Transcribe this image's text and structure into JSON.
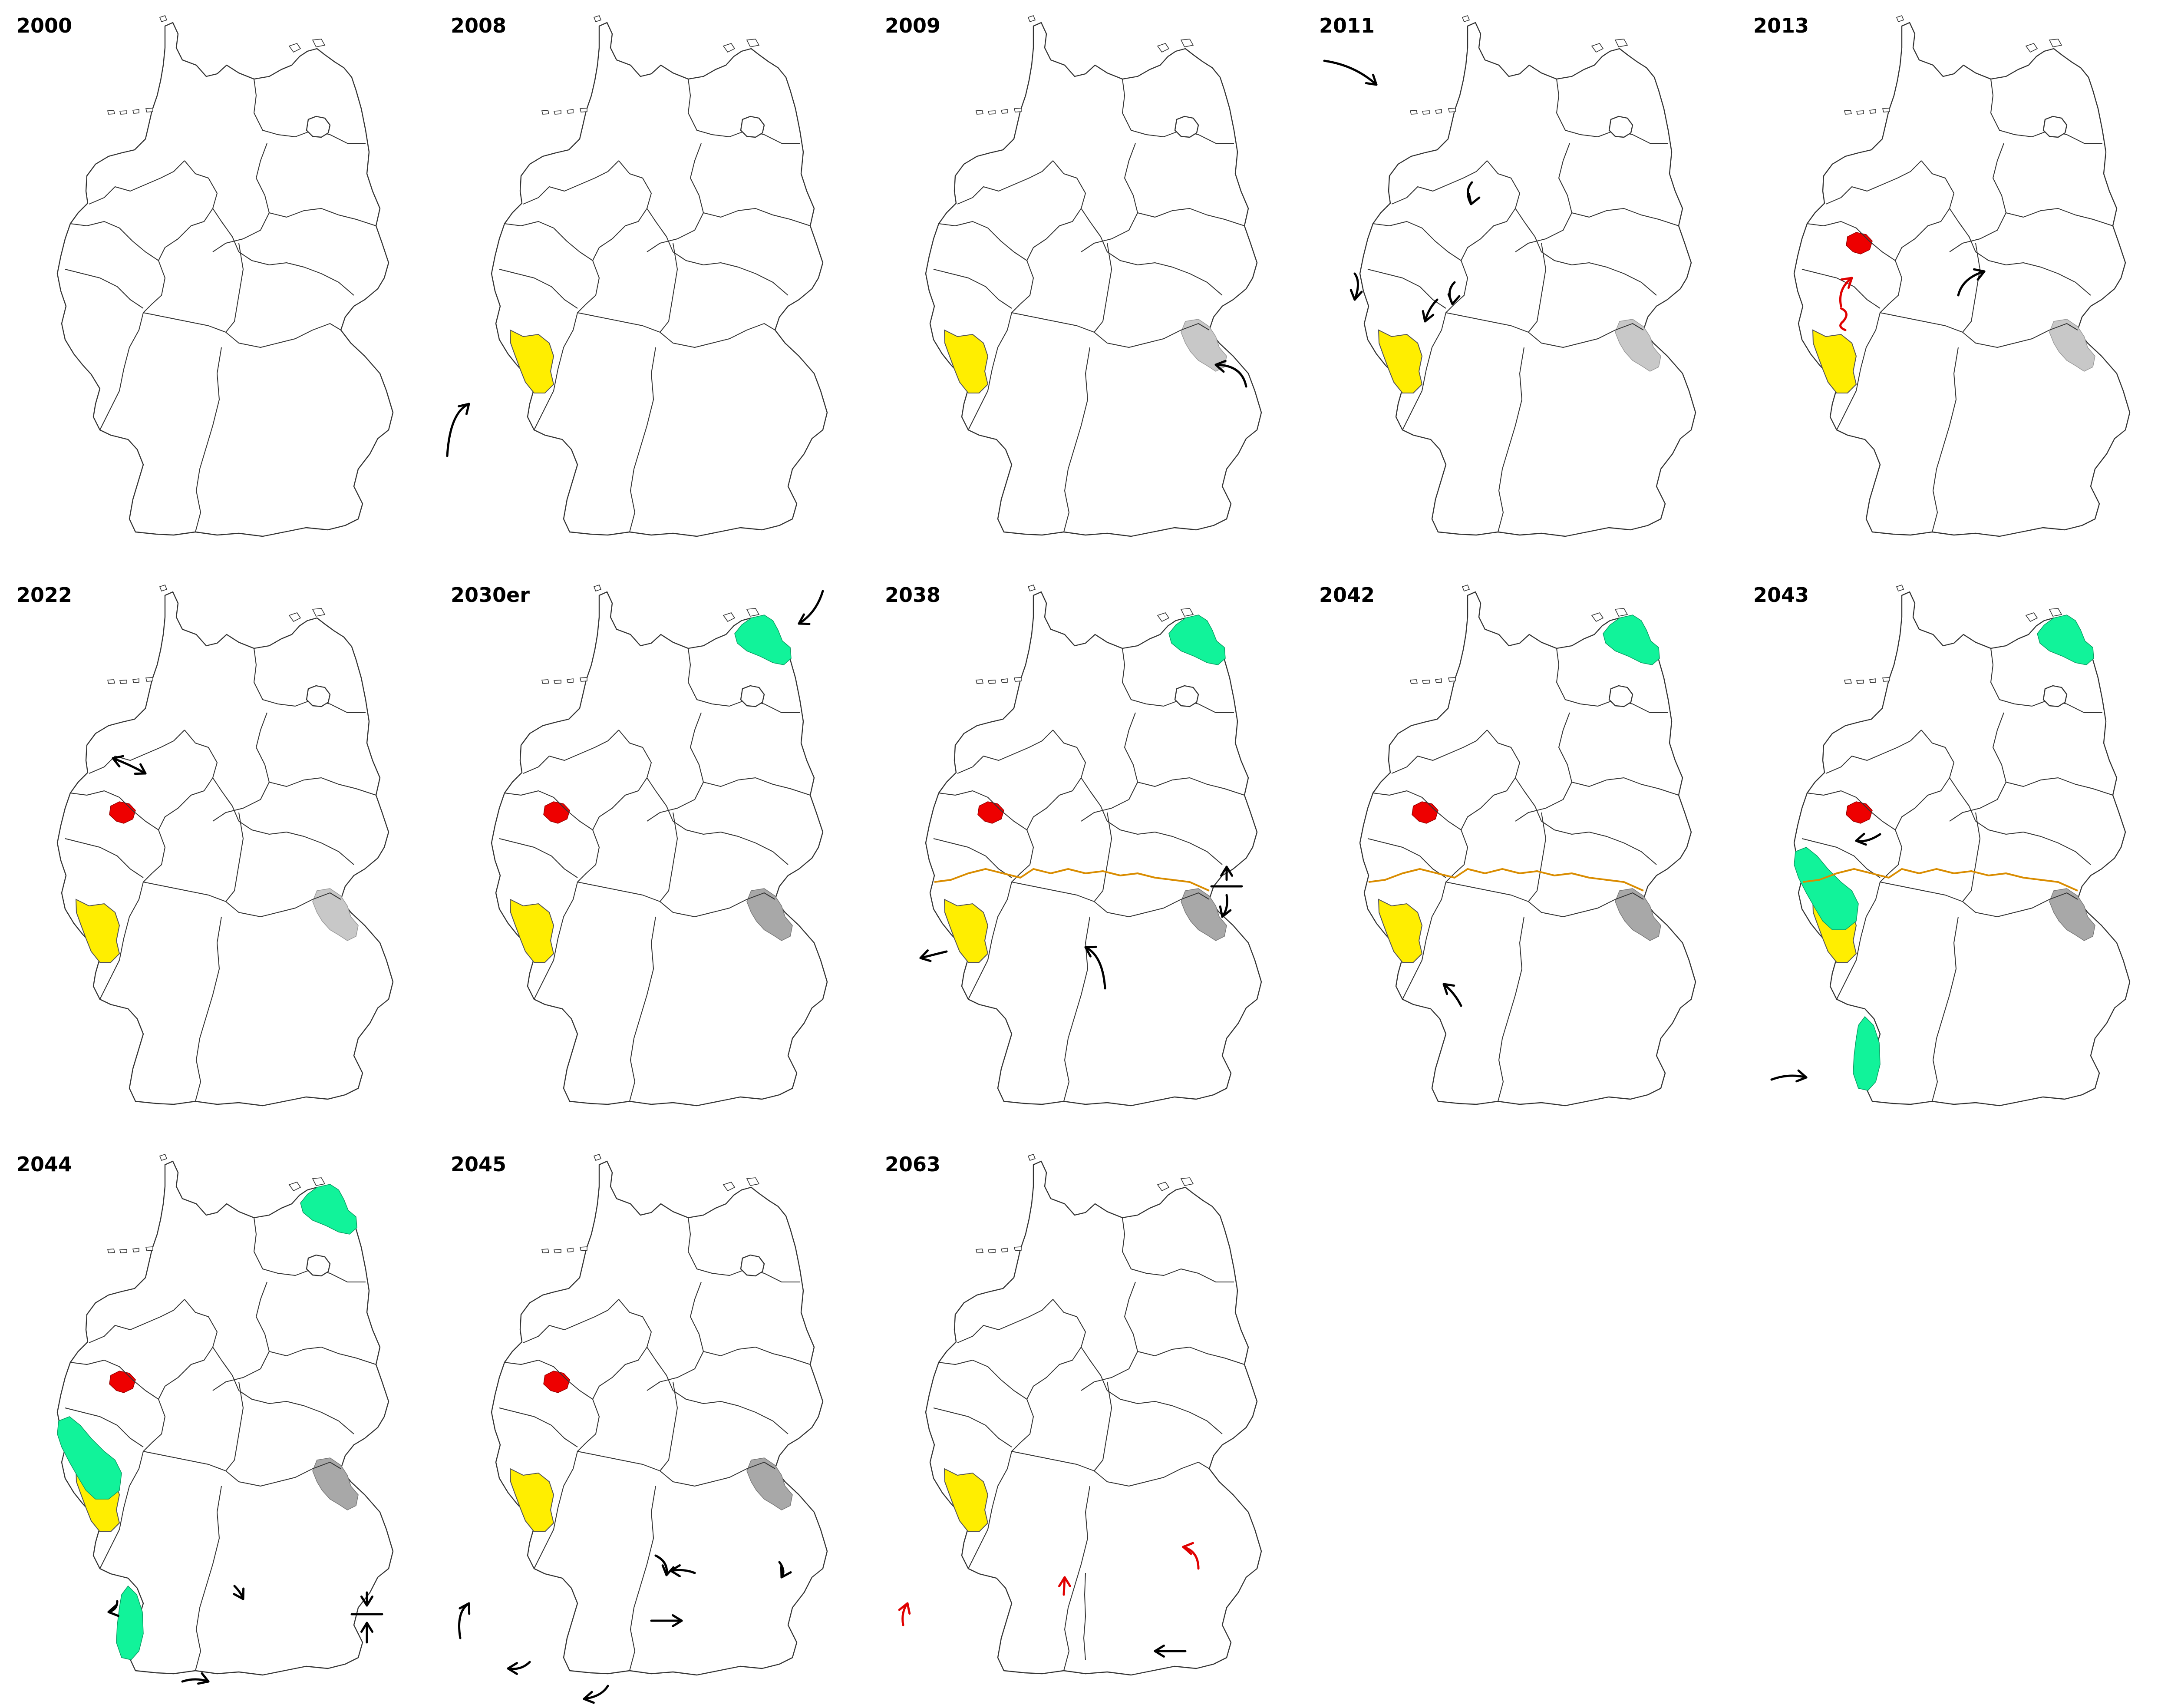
{
  "panels": [
    {
      "year": "2000"
    },
    {
      "year": "2008"
    },
    {
      "year": "2009"
    },
    {
      "year": "2011"
    },
    {
      "year": "2013"
    },
    {
      "year": "2022"
    },
    {
      "year": "2030er"
    },
    {
      "year": "2038"
    },
    {
      "year": "2042"
    },
    {
      "year": "2043"
    },
    {
      "year": "2044"
    },
    {
      "year": "2045"
    },
    {
      "year": "2063"
    }
  ],
  "colors": {
    "background": "#ffffff",
    "region_yellow": "#ffee00",
    "region_red": "#ee0000",
    "region_green": "#11f39a",
    "region_grey_light": "#c8c8c8",
    "region_grey_dark": "#a8a8a8",
    "divide_line": "#d98c00",
    "arrow_black": "#000000",
    "arrow_red": "#e00000"
  },
  "icons": [
    "arrow-icon",
    "question-mark-icon"
  ]
}
